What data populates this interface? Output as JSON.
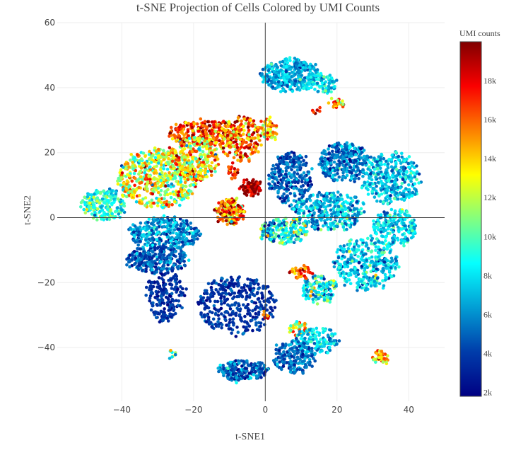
{
  "chart_data": {
    "type": "scatter",
    "title": "t-SNE Projection of Cells Colored by UMI Counts",
    "xlabel": "t-SNE1",
    "ylabel": "t-SNE2",
    "xlim": [
      -58,
      50
    ],
    "ylim": [
      -56.5,
      60
    ],
    "x_ticks": [
      -40,
      -20,
      0,
      20,
      40
    ],
    "x_tick_labels": [
      "−40",
      "−20",
      "0",
      "20",
      "40"
    ],
    "y_ticks": [
      -40,
      -20,
      0,
      20,
      40,
      60
    ],
    "y_tick_labels": [
      "−40",
      "−20",
      "0",
      "20",
      "40",
      "60"
    ],
    "grid": true,
    "zero_lines": true,
    "colorscale": "Jet",
    "colorbar": {
      "title": "UMI counts",
      "range": [
        1800,
        20000
      ],
      "ticks": [
        2000,
        4000,
        6000,
        8000,
        10000,
        12000,
        14000,
        16000,
        18000
      ],
      "tick_labels": [
        "2k",
        "4k",
        "6k",
        "8k",
        "10k",
        "12k",
        "14k",
        "16k",
        "18k"
      ],
      "placement": "right"
    },
    "clusters": [
      {
        "cx": 7,
        "cy": 44,
        "rx": 8,
        "ry": 5,
        "n": 320,
        "umi": 6500,
        "spread": 1200
      },
      {
        "cx": 15,
        "cy": 41,
        "rx": 5,
        "ry": 3,
        "n": 90,
        "umi": 8000,
        "spread": 1600
      },
      {
        "cx": 20,
        "cy": 35,
        "rx": 2,
        "ry": 1.5,
        "n": 25,
        "umi": 15000,
        "spread": 2500
      },
      {
        "cx": 14,
        "cy": 33,
        "rx": 1,
        "ry": 1,
        "n": 6,
        "umi": 17000,
        "spread": 2000
      },
      {
        "cx": -17,
        "cy": 26,
        "rx": 10,
        "ry": 4,
        "n": 280,
        "umi": 16500,
        "spread": 2200
      },
      {
        "cx": -7,
        "cy": 24,
        "rx": 6,
        "ry": 7,
        "n": 200,
        "umi": 15500,
        "spread": 2500
      },
      {
        "cx": 1,
        "cy": 27,
        "rx": 2.5,
        "ry": 3,
        "n": 60,
        "umi": 15000,
        "spread": 2200
      },
      {
        "cx": -30,
        "cy": 12,
        "rx": 11,
        "ry": 9,
        "n": 560,
        "umi": 12500,
        "spread": 2800
      },
      {
        "cx": -20,
        "cy": 18,
        "rx": 7,
        "ry": 7,
        "n": 260,
        "umi": 13000,
        "spread": 2800
      },
      {
        "cx": -45,
        "cy": 4,
        "rx": 6,
        "ry": 5,
        "n": 200,
        "umi": 9500,
        "spread": 1800
      },
      {
        "cx": -4,
        "cy": 9,
        "rx": 3,
        "ry": 2.5,
        "n": 90,
        "umi": 19000,
        "spread": 1000
      },
      {
        "cx": -9,
        "cy": 14,
        "rx": 1.8,
        "ry": 2.5,
        "n": 25,
        "umi": 17000,
        "spread": 2000
      },
      {
        "cx": -10,
        "cy": 2,
        "rx": 4,
        "ry": 4,
        "n": 180,
        "umi": 15500,
        "spread": 3000
      },
      {
        "cx": -28,
        "cy": -5,
        "rx": 10,
        "ry": 5,
        "n": 340,
        "umi": 6000,
        "spread": 1500
      },
      {
        "cx": -30,
        "cy": -13,
        "rx": 9,
        "ry": 4,
        "n": 240,
        "umi": 4800,
        "spread": 1300
      },
      {
        "cx": -28,
        "cy": -24,
        "rx": 5,
        "ry": 8,
        "n": 200,
        "umi": 3500,
        "spread": 800
      },
      {
        "cx": -26,
        "cy": -42,
        "rx": 1,
        "ry": 1.5,
        "n": 8,
        "umi": 10000,
        "spread": 4000
      },
      {
        "cx": -8,
        "cy": -27,
        "rx": 11,
        "ry": 9,
        "n": 360,
        "umi": 3600,
        "spread": 900
      },
      {
        "cx": -6,
        "cy": -47,
        "rx": 7,
        "ry": 3,
        "n": 200,
        "umi": 5000,
        "spread": 1800
      },
      {
        "cx": 0,
        "cy": -30,
        "rx": 1,
        "ry": 1.5,
        "n": 8,
        "umi": 16500,
        "spread": 2000
      },
      {
        "cx": 22,
        "cy": 17,
        "rx": 7,
        "ry": 6,
        "n": 300,
        "umi": 5500,
        "spread": 1500
      },
      {
        "cx": 7,
        "cy": 12,
        "rx": 6,
        "ry": 8,
        "n": 260,
        "umi": 4800,
        "spread": 1300
      },
      {
        "cx": 35,
        "cy": 12,
        "rx": 8,
        "ry": 8,
        "n": 340,
        "umi": 7000,
        "spread": 1600
      },
      {
        "cx": 18,
        "cy": 2,
        "rx": 10,
        "ry": 6,
        "n": 340,
        "umi": 6800,
        "spread": 1800
      },
      {
        "cx": 36,
        "cy": -3,
        "rx": 6,
        "ry": 6,
        "n": 200,
        "umi": 7600,
        "spread": 1600
      },
      {
        "cx": 5,
        "cy": -4,
        "rx": 7,
        "ry": 4,
        "n": 200,
        "umi": 8200,
        "spread": 2800
      },
      {
        "cx": 28,
        "cy": -14,
        "rx": 9,
        "ry": 8,
        "n": 340,
        "umi": 7400,
        "spread": 1600
      },
      {
        "cx": 15,
        "cy": -22,
        "rx": 5,
        "ry": 4,
        "n": 140,
        "umi": 8500,
        "spread": 2600
      },
      {
        "cx": 10,
        "cy": -17,
        "rx": 3,
        "ry": 2,
        "n": 40,
        "umi": 16500,
        "spread": 2000
      },
      {
        "cx": 9,
        "cy": -34,
        "rx": 3,
        "ry": 2,
        "n": 40,
        "umi": 13000,
        "spread": 2500
      },
      {
        "cx": 14,
        "cy": -38,
        "rx": 6,
        "ry": 4,
        "n": 140,
        "umi": 7200,
        "spread": 1400
      },
      {
        "cx": 8,
        "cy": -43,
        "rx": 6,
        "ry": 5,
        "n": 180,
        "umi": 5200,
        "spread": 1200
      },
      {
        "cx": 32,
        "cy": -43,
        "rx": 2.5,
        "ry": 1.8,
        "n": 40,
        "umi": 15500,
        "spread": 2500
      }
    ]
  }
}
